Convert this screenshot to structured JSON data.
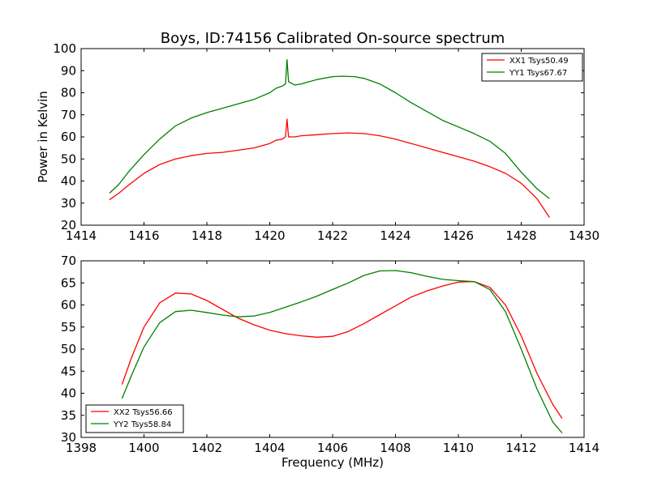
{
  "figure": {
    "title": "Boys, ID:74156 Calibrated On-source spectrum",
    "ylabel": "Power in Kelvin",
    "xlabel": "Frequency (MHz)"
  },
  "chart_data": [
    {
      "type": "line",
      "title": "Boys, ID:74156 Calibrated On-source spectrum",
      "xlabel": "",
      "ylabel": "Power in Kelvin",
      "xlim": [
        1414,
        1430
      ],
      "ylim": [
        20,
        100
      ],
      "xticks": [
        1414,
        1416,
        1418,
        1420,
        1422,
        1424,
        1426,
        1428,
        1430
      ],
      "yticks": [
        20,
        30,
        40,
        50,
        60,
        70,
        80,
        90,
        100
      ],
      "grid": false,
      "legend_position": "top-right",
      "series": [
        {
          "name": "XX1 Tsys50.49",
          "color": "#ff0000",
          "points": [
            [
              1414.9,
              31.5
            ],
            [
              1415.2,
              34.5
            ],
            [
              1415.5,
              38.0
            ],
            [
              1416.0,
              43.5
            ],
            [
              1416.5,
              47.5
            ],
            [
              1417.0,
              50.0
            ],
            [
              1417.5,
              51.5
            ],
            [
              1418.0,
              52.5
            ],
            [
              1418.5,
              53.0
            ],
            [
              1419.0,
              54.0
            ],
            [
              1419.5,
              55.0
            ],
            [
              1420.0,
              57.0
            ],
            [
              1420.2,
              58.5
            ],
            [
              1420.4,
              59.0
            ],
            [
              1420.5,
              60.0
            ],
            [
              1420.55,
              68.0
            ],
            [
              1420.6,
              60.0
            ],
            [
              1420.8,
              60.0
            ],
            [
              1421.0,
              60.5
            ],
            [
              1421.5,
              61.0
            ],
            [
              1422.0,
              61.5
            ],
            [
              1422.5,
              61.8
            ],
            [
              1423.0,
              61.5
            ],
            [
              1423.5,
              60.5
            ],
            [
              1424.0,
              59.0
            ],
            [
              1424.5,
              57.0
            ],
            [
              1425.0,
              55.0
            ],
            [
              1425.5,
              53.0
            ],
            [
              1426.0,
              51.0
            ],
            [
              1426.5,
              49.0
            ],
            [
              1427.0,
              46.5
            ],
            [
              1427.5,
              43.5
            ],
            [
              1428.0,
              39.0
            ],
            [
              1428.5,
              32.0
            ],
            [
              1428.9,
              23.5
            ]
          ]
        },
        {
          "name": "YY1 Tsys67.67",
          "color": "#008000",
          "points": [
            [
              1414.9,
              34.5
            ],
            [
              1415.2,
              38.5
            ],
            [
              1415.5,
              44.0
            ],
            [
              1416.0,
              52.0
            ],
            [
              1416.5,
              59.0
            ],
            [
              1417.0,
              65.0
            ],
            [
              1417.5,
              68.5
            ],
            [
              1418.0,
              71.0
            ],
            [
              1418.5,
              73.0
            ],
            [
              1419.0,
              75.0
            ],
            [
              1419.5,
              77.0
            ],
            [
              1420.0,
              80.0
            ],
            [
              1420.2,
              82.0
            ],
            [
              1420.4,
              83.0
            ],
            [
              1420.5,
              84.0
            ],
            [
              1420.55,
              95.0
            ],
            [
              1420.6,
              85.0
            ],
            [
              1420.8,
              83.5
            ],
            [
              1421.0,
              84.0
            ],
            [
              1421.5,
              86.0
            ],
            [
              1422.0,
              87.3
            ],
            [
              1422.3,
              87.5
            ],
            [
              1422.7,
              87.3
            ],
            [
              1423.0,
              86.5
            ],
            [
              1423.5,
              84.0
            ],
            [
              1424.0,
              80.0
            ],
            [
              1424.5,
              75.5
            ],
            [
              1425.0,
              71.5
            ],
            [
              1425.5,
              67.5
            ],
            [
              1426.0,
              64.5
            ],
            [
              1426.5,
              61.5
            ],
            [
              1427.0,
              58.0
            ],
            [
              1427.5,
              52.5
            ],
            [
              1428.0,
              44.0
            ],
            [
              1428.5,
              36.5
            ],
            [
              1428.9,
              32.0
            ]
          ]
        }
      ]
    },
    {
      "type": "line",
      "title": "",
      "xlabel": "Frequency (MHz)",
      "ylabel": "",
      "xlim": [
        1398,
        1414
      ],
      "ylim": [
        30,
        70
      ],
      "xticks": [
        1398,
        1400,
        1402,
        1404,
        1406,
        1408,
        1410,
        1412,
        1414
      ],
      "yticks": [
        30,
        35,
        40,
        45,
        50,
        55,
        60,
        65,
        70
      ],
      "grid": false,
      "legend_position": "bottom-left",
      "series": [
        {
          "name": "XX2 Tsys56.66",
          "color": "#ff0000",
          "points": [
            [
              1399.3,
              42.0
            ],
            [
              1399.6,
              48.0
            ],
            [
              1400.0,
              55.0
            ],
            [
              1400.5,
              60.5
            ],
            [
              1401.0,
              62.7
            ],
            [
              1401.5,
              62.5
            ],
            [
              1402.0,
              61.0
            ],
            [
              1402.5,
              59.0
            ],
            [
              1403.0,
              57.0
            ],
            [
              1403.5,
              55.5
            ],
            [
              1404.0,
              54.3
            ],
            [
              1404.5,
              53.5
            ],
            [
              1405.0,
              53.0
            ],
            [
              1405.5,
              52.7
            ],
            [
              1406.0,
              52.9
            ],
            [
              1406.5,
              54.0
            ],
            [
              1407.0,
              55.8
            ],
            [
              1407.5,
              57.8
            ],
            [
              1408.0,
              59.8
            ],
            [
              1408.5,
              61.8
            ],
            [
              1409.0,
              63.2
            ],
            [
              1409.5,
              64.3
            ],
            [
              1410.0,
              65.2
            ],
            [
              1410.5,
              65.3
            ],
            [
              1411.0,
              64.0
            ],
            [
              1411.5,
              60.0
            ],
            [
              1412.0,
              53.0
            ],
            [
              1412.5,
              44.5
            ],
            [
              1413.0,
              37.5
            ],
            [
              1413.3,
              34.3
            ]
          ]
        },
        {
          "name": "YY2 Tsys58.84",
          "color": "#008000",
          "points": [
            [
              1399.3,
              38.8
            ],
            [
              1399.6,
              44.0
            ],
            [
              1400.0,
              50.5
            ],
            [
              1400.5,
              56.0
            ],
            [
              1401.0,
              58.5
            ],
            [
              1401.5,
              58.8
            ],
            [
              1402.0,
              58.3
            ],
            [
              1402.5,
              57.7
            ],
            [
              1403.0,
              57.3
            ],
            [
              1403.5,
              57.5
            ],
            [
              1404.0,
              58.3
            ],
            [
              1404.5,
              59.5
            ],
            [
              1405.0,
              60.7
            ],
            [
              1405.5,
              62.0
            ],
            [
              1406.0,
              63.5
            ],
            [
              1406.5,
              65.0
            ],
            [
              1407.0,
              66.7
            ],
            [
              1407.5,
              67.7
            ],
            [
              1408.0,
              67.8
            ],
            [
              1408.5,
              67.3
            ],
            [
              1409.0,
              66.5
            ],
            [
              1409.5,
              65.8
            ],
            [
              1410.0,
              65.5
            ],
            [
              1410.5,
              65.3
            ],
            [
              1411.0,
              63.5
            ],
            [
              1411.5,
              58.5
            ],
            [
              1412.0,
              50.0
            ],
            [
              1412.5,
              41.0
            ],
            [
              1413.0,
              33.5
            ],
            [
              1413.3,
              31.0
            ]
          ]
        }
      ]
    }
  ]
}
